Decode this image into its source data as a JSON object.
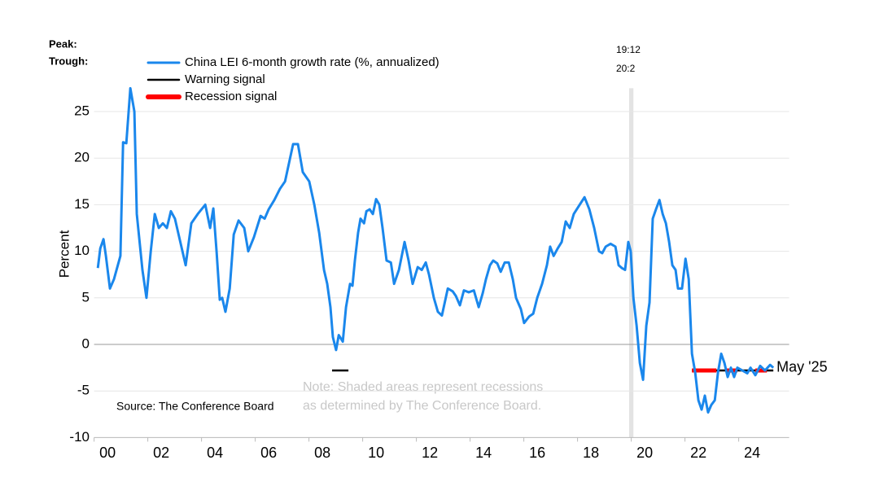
{
  "chart_data": {
    "type": "line",
    "peak_label": "Peak:",
    "trough_label": "Trough:",
    "y_label": "Percent",
    "source": "Source: The Conference Board",
    "note": [
      "Note: Shaded areas represent recessions",
      "as determined by The Conference Board."
    ],
    "end_label": "May '25",
    "xlim": [
      2000,
      2026
    ],
    "ylim": [
      -10,
      27.5
    ],
    "yticks": [
      -10,
      -5,
      0,
      5,
      10,
      15,
      20,
      25
    ],
    "xticks": [
      {
        "value": 2000,
        "label": "00"
      },
      {
        "value": 2002,
        "label": "02"
      },
      {
        "value": 2004,
        "label": "04"
      },
      {
        "value": 2006,
        "label": "06"
      },
      {
        "value": 2008,
        "label": "08"
      },
      {
        "value": 2010,
        "label": "10"
      },
      {
        "value": 2012,
        "label": "12"
      },
      {
        "value": 2014,
        "label": "14"
      },
      {
        "value": 2016,
        "label": "16"
      },
      {
        "value": 2018,
        "label": "18"
      },
      {
        "value": 2020,
        "label": "20"
      },
      {
        "value": 2022,
        "label": "22"
      },
      {
        "value": 2024,
        "label": "24"
      }
    ],
    "grid": true,
    "recessions": [
      {
        "start": 2019.92,
        "end": 2020.08,
        "peak": "19:12",
        "trough": "20:2"
      }
    ],
    "x": [
      2000.14,
      2000.23,
      2000.35,
      2000.44,
      2000.59,
      2000.74,
      2000.98,
      2001.08,
      2001.2,
      2001.35,
      2001.5,
      2001.59,
      2001.8,
      2001.95,
      2002.11,
      2002.26,
      2002.41,
      2002.56,
      2002.71,
      2002.86,
      2003.01,
      2003.17,
      2003.41,
      2003.62,
      2003.86,
      2004.14,
      2004.32,
      2004.44,
      2004.56,
      2004.68,
      2004.77,
      2004.89,
      2005.05,
      2005.2,
      2005.38,
      2005.59,
      2005.74,
      2005.95,
      2006.2,
      2006.35,
      2006.5,
      2006.71,
      2006.92,
      2007.11,
      2007.26,
      2007.41,
      2007.59,
      2007.77,
      2008.01,
      2008.2,
      2008.38,
      2008.56,
      2008.68,
      2008.8,
      2008.89,
      2009.01,
      2009.11,
      2009.26,
      2009.38,
      2009.53,
      2009.62,
      2009.71,
      2009.83,
      2009.92,
      2010.05,
      2010.14,
      2010.26,
      2010.38,
      2010.5,
      2010.62,
      2010.74,
      2010.89,
      2011.05,
      2011.17,
      2011.35,
      2011.56,
      2011.71,
      2011.86,
      2012.05,
      2012.2,
      2012.35,
      2012.47,
      2012.65,
      2012.8,
      2012.95,
      2013.17,
      2013.35,
      2013.47,
      2013.62,
      2013.77,
      2013.95,
      2014.14,
      2014.32,
      2014.47,
      2014.59,
      2014.74,
      2014.86,
      2015.01,
      2015.14,
      2015.29,
      2015.44,
      2015.59,
      2015.71,
      2015.89,
      2016.01,
      2016.2,
      2016.35,
      2016.5,
      2016.68,
      2016.86,
      2016.98,
      2017.11,
      2017.26,
      2017.41,
      2017.56,
      2017.71,
      2017.86,
      2018.08,
      2018.26,
      2018.44,
      2018.62,
      2018.8,
      2018.92,
      2019.05,
      2019.23,
      2019.41,
      2019.53,
      2019.65,
      2019.77,
      2019.89,
      2019.98,
      2020.08,
      2020.2,
      2020.32,
      2020.44,
      2020.56,
      2020.68,
      2020.8,
      2020.92,
      2021.05,
      2021.17,
      2021.29,
      2021.41,
      2021.53,
      2021.65,
      2021.74,
      2021.89,
      2022.02,
      2022.14,
      2022.26,
      2022.38,
      2022.5,
      2022.62,
      2022.74,
      2022.86,
      2022.98,
      2023.11,
      2023.23,
      2023.35,
      2023.47,
      2023.59,
      2023.71,
      2023.83,
      2023.95,
      2024.14,
      2024.32,
      2024.44,
      2024.62,
      2024.8,
      2024.98,
      2025.17,
      2025.29
    ],
    "series": [
      {
        "name": "China LEI 6-month growth rate (%, annualized)",
        "color": "#1a87ec",
        "values": [
          8.2,
          10.3,
          11.3,
          9.5,
          6,
          7,
          9.5,
          21.7,
          21.6,
          27.5,
          25,
          14,
          8,
          5,
          10,
          14,
          12.5,
          13,
          12.5,
          14.3,
          13.5,
          11.5,
          8.5,
          13,
          14,
          15,
          12.5,
          14.6,
          10,
          4.8,
          5,
          3.5,
          6,
          11.8,
          13.3,
          12.5,
          10,
          11.5,
          13.8,
          13.5,
          14.5,
          15.5,
          16.7,
          17.5,
          19.5,
          21.5,
          21.5,
          18.5,
          17.5,
          15,
          12,
          8,
          6.5,
          4,
          0.8,
          -0.6,
          1,
          0.3,
          4,
          6.5,
          6.3,
          9,
          12,
          13.5,
          13,
          14.3,
          14.5,
          14,
          15.6,
          15,
          12.5,
          9,
          8.8,
          6.5,
          8,
          11,
          9,
          6.5,
          8.3,
          8,
          8.8,
          7.5,
          5,
          3.5,
          3.1,
          6,
          5.7,
          5.2,
          4.2,
          5.8,
          5.6,
          5.8,
          4,
          5.5,
          7,
          8.5,
          9,
          8.7,
          7.8,
          8.8,
          8.8,
          7,
          5,
          3.8,
          2.3,
          3,
          3.3,
          5,
          6.5,
          8.5,
          10.5,
          9.5,
          10.3,
          11,
          13.2,
          12.5,
          14,
          15,
          15.8,
          14.5,
          12.5,
          10,
          9.8,
          10.5,
          10.8,
          10.5,
          8.5,
          8.2,
          8,
          11,
          10,
          5,
          2,
          -2,
          -3.8,
          2,
          4.5,
          13.5,
          14.5,
          15.5,
          14,
          13,
          11,
          8.5,
          8,
          6,
          6,
          9.2,
          7,
          -1,
          -3,
          -6,
          -7,
          -5.5,
          -7.3,
          -6.5,
          -6,
          -3,
          -1,
          -2,
          -3.5,
          -2.5,
          -3.5,
          -2.5,
          -2.8,
          -3.1,
          -2.5,
          -3.3,
          -2.3,
          -2.8,
          -2.2,
          -2.5
        ]
      }
    ],
    "signals": [
      {
        "name": "Warning signal",
        "color": "#000000",
        "level": -2.8,
        "periods": [
          [
            2008.86,
            2009.47
          ],
          [
            2022.26,
            2025.29
          ]
        ]
      },
      {
        "name": "Recession signal",
        "color": "#ff0000",
        "level": -2.8,
        "periods": [
          [
            2022.26,
            2023.17
          ],
          [
            2023.53,
            2023.95
          ],
          [
            2024.62,
            2025.05
          ]
        ]
      }
    ]
  }
}
